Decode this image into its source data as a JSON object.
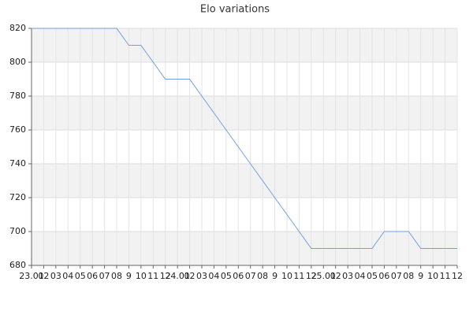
{
  "chart_data": {
    "type": "line",
    "title": "Elo variations",
    "categories": [
      "23.01",
      "02",
      "03",
      "04",
      "05",
      "06",
      "07",
      "08",
      "9",
      "10",
      "11",
      "12",
      "24.01",
      "02",
      "03",
      "04",
      "05",
      "06",
      "07",
      "08",
      "9",
      "10",
      "11",
      "12",
      "25.01",
      "02",
      "03",
      "04",
      "05",
      "06",
      "07",
      "08",
      "9",
      "10",
      "11",
      "12"
    ],
    "series": [
      {
        "color": "#6f9fe0",
        "values": [
          820,
          820,
          820,
          820,
          820,
          820,
          820,
          820,
          810,
          810,
          800,
          790,
          790,
          790,
          780,
          770,
          760,
          750,
          740,
          730,
          720,
          710,
          700,
          690,
          690,
          690,
          690,
          690,
          690,
          700,
          700,
          700,
          690,
          690,
          690,
          690
        ]
      }
    ],
    "ylim": [
      680,
      820
    ],
    "yticks": [
      680,
      700,
      720,
      740,
      760,
      780,
      800,
      820
    ],
    "grid": true,
    "band_color": "#f2f2f2"
  }
}
